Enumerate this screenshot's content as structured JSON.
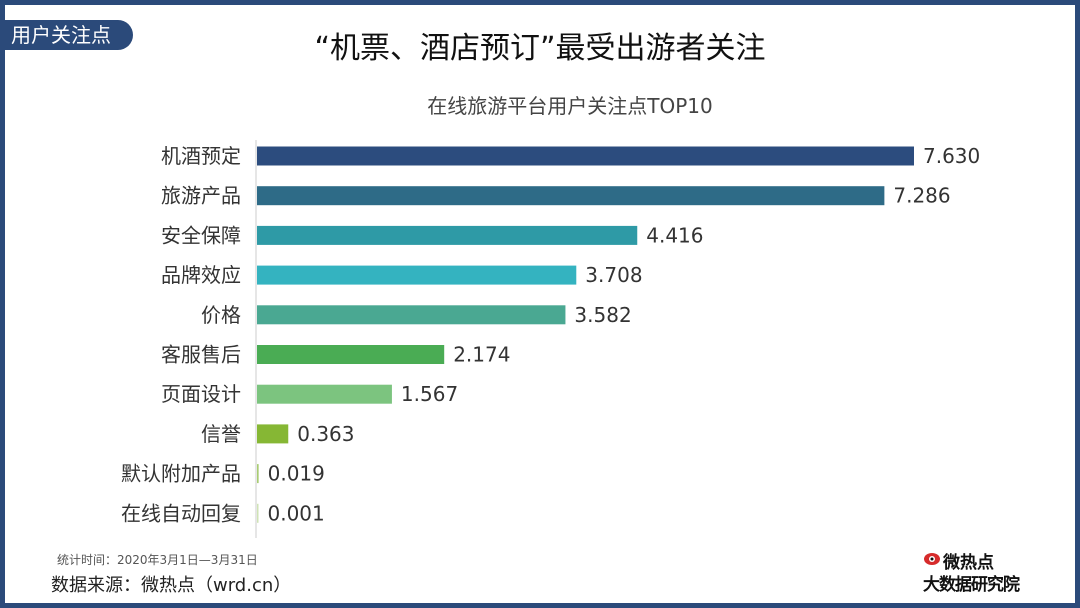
{
  "tag": "用户关注点",
  "headline": "“机票、酒店预订”最受出游者关注",
  "footer": {
    "stat_time": "统计时间：2020年3月1日—3月31日",
    "source": "数据来源：微热点（wrd.cn）"
  },
  "logo": {
    "line1": "微热点",
    "line2": "大数据研究院"
  },
  "chart_data": {
    "type": "bar",
    "orientation": "horizontal",
    "title": "在线旅游平台用户关注点TOP10",
    "categories": [
      "机酒预定",
      "旅游产品",
      "安全保障",
      "品牌效应",
      "价格",
      "客服售后",
      "页面设计",
      "信誉",
      "默认附加产品",
      "在线自动回复"
    ],
    "values": [
      7.63,
      7.286,
      4.416,
      3.708,
      3.582,
      2.174,
      1.567,
      0.363,
      0.019,
      0.001
    ],
    "labels": [
      "7.630",
      "7.286",
      "4.416",
      "3.708",
      "3.582",
      "2.174",
      "1.567",
      "0.363",
      "0.019",
      "0.001"
    ],
    "colors": [
      "#2c4c7e",
      "#2e6b87",
      "#2e9aa6",
      "#34b3c0",
      "#4aa892",
      "#4aac54",
      "#7cc47f",
      "#86b734",
      "#a8cc72",
      "#cfe3b5"
    ],
    "xlim": [
      0,
      7.63
    ],
    "grid": false,
    "legend": "none"
  }
}
